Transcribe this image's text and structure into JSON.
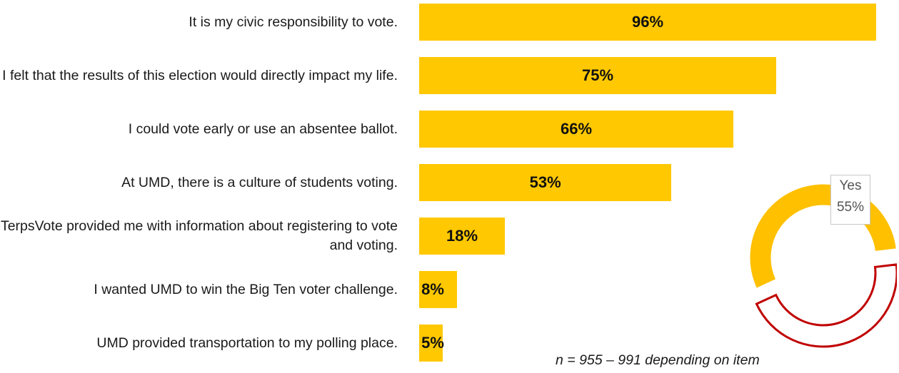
{
  "chart_data": [
    {
      "type": "bar",
      "orientation": "horizontal",
      "categories": [
        "It is my civic responsibility to vote.",
        "I felt that the results of this election would directly impact my life.",
        "I could vote early or use an absentee ballot.",
        "At UMD, there is a culture of students voting.",
        "TerpsVote provided me with information about registering to vote and voting.",
        "I wanted UMD to win the Big Ten voter challenge.",
        "UMD provided transportation to my polling place."
      ],
      "values": [
        96,
        75,
        66,
        53,
        18,
        8,
        5
      ],
      "value_labels": [
        "96%",
        "75%",
        "66%",
        "53%",
        "18%",
        "8%",
        "5%"
      ],
      "xlim": [
        0,
        100
      ],
      "color": "#ffc800"
    },
    {
      "type": "pie",
      "style": "donut",
      "slices": [
        {
          "label": "Yes",
          "value": 55,
          "value_label": "55%",
          "color": "#ffc000"
        },
        {
          "label": "",
          "value": 45,
          "color": "#ffffff",
          "outline": "#c00000"
        }
      ]
    }
  ],
  "footnote": "n = 955 – 991 depending on item"
}
